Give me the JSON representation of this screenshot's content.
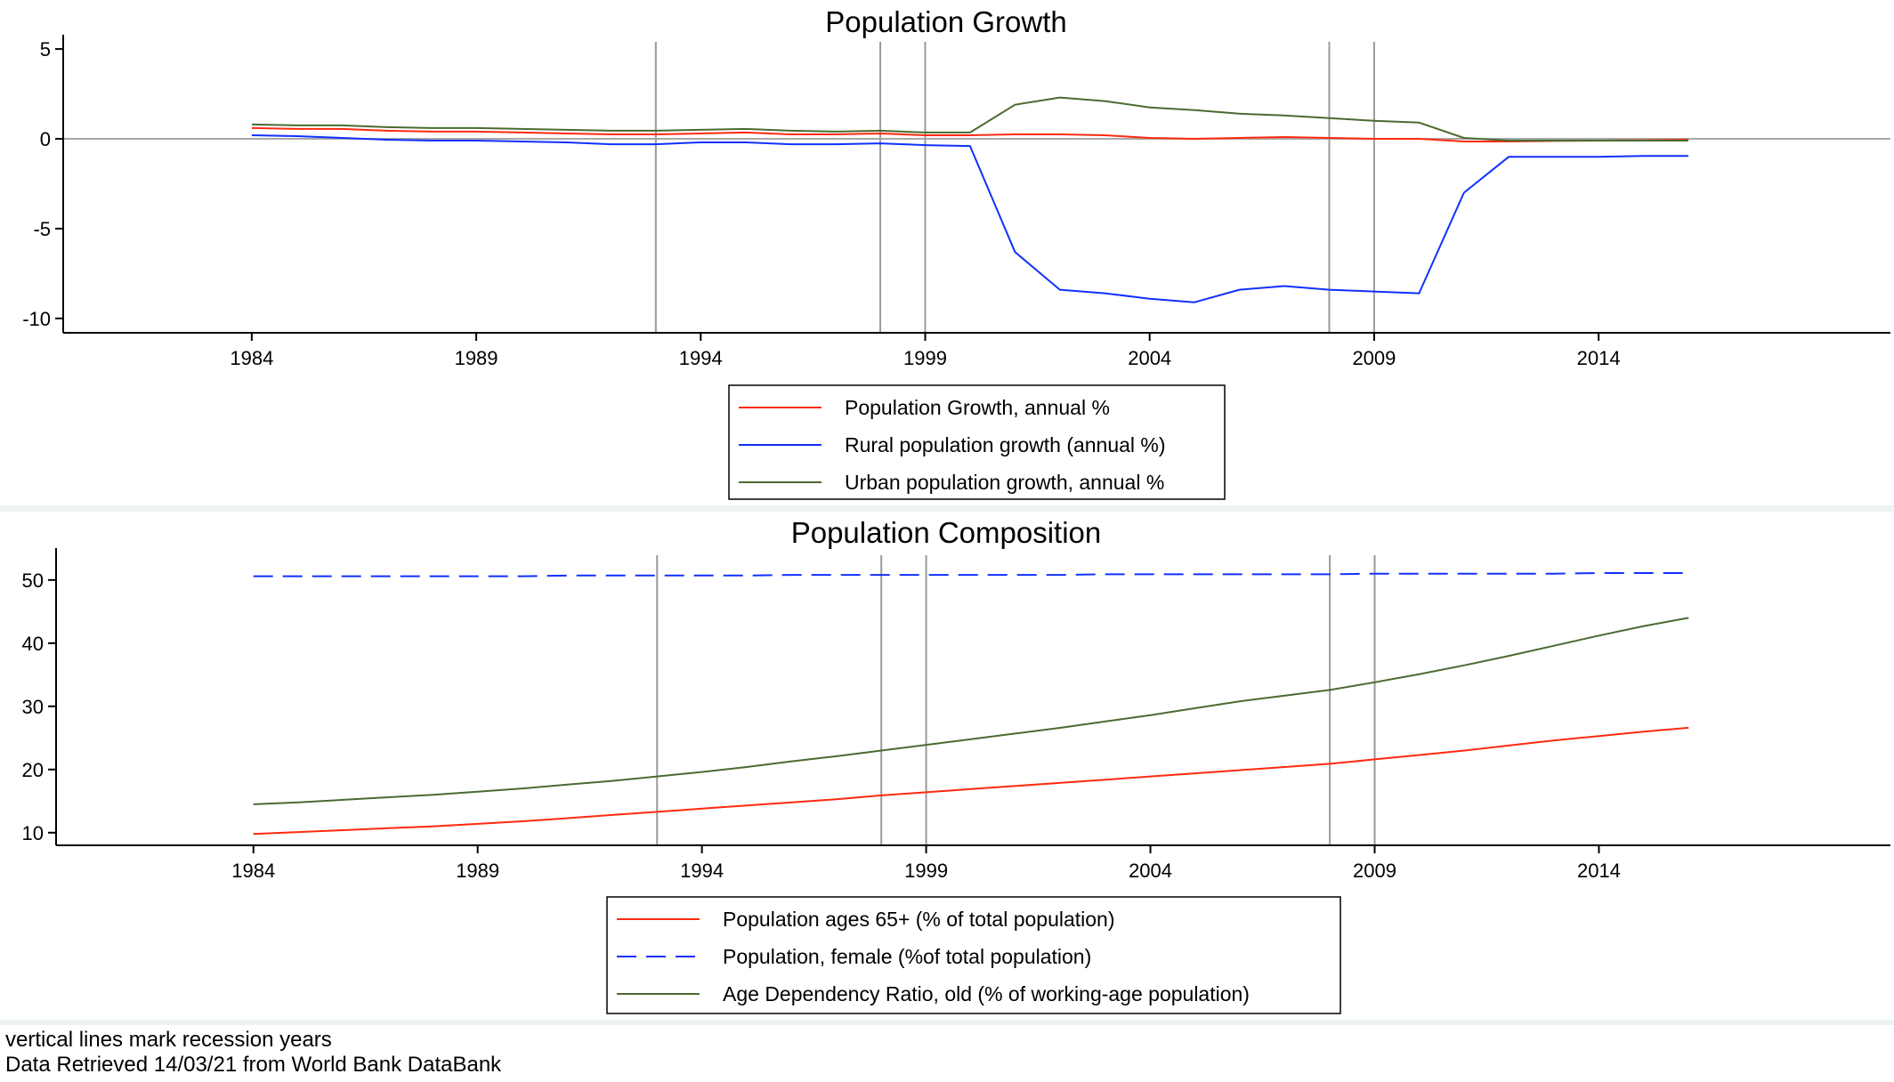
{
  "notes": [
    "vertical lines mark recession years",
    "Data Retrieved 14/03/21 from World Bank DataBank"
  ],
  "chart_data": [
    {
      "type": "line",
      "title": "Population Growth",
      "xlabel": "",
      "ylabel": "",
      "xlim": [
        1979.8,
        2020.5
      ],
      "ylim": [
        -10.8,
        5.5
      ],
      "xticks": [
        1984,
        1989,
        1994,
        1999,
        2004,
        2009,
        2014
      ],
      "yticks": [
        5,
        0,
        -5,
        -10
      ],
      "zero_line": true,
      "recession_years": [
        1993,
        1998,
        1999,
        2008,
        2009
      ],
      "legend_position": "bottom",
      "x": [
        1984,
        1985,
        1986,
        1987,
        1988,
        1989,
        1990,
        1991,
        1992,
        1993,
        1994,
        1995,
        1996,
        1997,
        1998,
        1999,
        2000,
        2001,
        2002,
        2003,
        2004,
        2005,
        2006,
        2007,
        2008,
        2009,
        2010,
        2011,
        2012,
        2013,
        2014,
        2015,
        2016
      ],
      "series": [
        {
          "name": "Population Growth, annual %",
          "color": "#ff2a10",
          "dash": "solid",
          "values": [
            0.6,
            0.55,
            0.55,
            0.45,
            0.4,
            0.4,
            0.35,
            0.3,
            0.25,
            0.25,
            0.3,
            0.35,
            0.25,
            0.25,
            0.3,
            0.2,
            0.2,
            0.25,
            0.25,
            0.2,
            0.05,
            0.0,
            0.05,
            0.1,
            0.05,
            0.0,
            0.0,
            -0.15,
            -0.15,
            -0.12,
            -0.1,
            -0.08,
            -0.05
          ]
        },
        {
          "name": "Rural population growth (annual %)",
          "color": "#1030ff",
          "dash": "solid",
          "values": [
            0.2,
            0.15,
            0.05,
            -0.05,
            -0.1,
            -0.1,
            -0.15,
            -0.2,
            -0.3,
            -0.3,
            -0.2,
            -0.2,
            -0.3,
            -0.3,
            -0.25,
            -0.35,
            -0.4,
            -6.3,
            -8.4,
            -8.6,
            -8.9,
            -9.1,
            -8.4,
            -8.2,
            -8.4,
            -8.5,
            -8.6,
            -3.0,
            -1.0,
            -1.0,
            -1.0,
            -0.95,
            -0.95
          ]
        },
        {
          "name": "Urban population growth, annual %",
          "color": "#4a6b30",
          "dash": "solid",
          "values": [
            0.8,
            0.75,
            0.75,
            0.65,
            0.6,
            0.6,
            0.55,
            0.5,
            0.45,
            0.45,
            0.5,
            0.55,
            0.45,
            0.4,
            0.45,
            0.35,
            0.35,
            1.9,
            2.3,
            2.1,
            1.75,
            1.6,
            1.4,
            1.3,
            1.15,
            1.0,
            0.9,
            0.05,
            -0.1,
            -0.1,
            -0.1,
            -0.1,
            -0.1
          ]
        }
      ]
    },
    {
      "type": "line",
      "title": "Population Composition",
      "xlabel": "",
      "ylabel": "",
      "xlim": [
        1979.6,
        2020.5
      ],
      "ylim": [
        8,
        54.2
      ],
      "xticks": [
        1984,
        1989,
        1994,
        1999,
        2004,
        2009,
        2014
      ],
      "yticks": [
        50,
        40,
        30,
        20,
        10
      ],
      "recession_years": [
        1993,
        1998,
        1999,
        2008,
        2009
      ],
      "legend_position": "bottom",
      "x": [
        1984,
        1985,
        1986,
        1987,
        1988,
        1989,
        1990,
        1991,
        1992,
        1993,
        1994,
        1995,
        1996,
        1997,
        1998,
        1999,
        2000,
        2001,
        2002,
        2003,
        2004,
        2005,
        2006,
        2007,
        2008,
        2009,
        2010,
        2011,
        2012,
        2013,
        2014,
        2015,
        2016
      ],
      "series": [
        {
          "name": "Population ages 65+ (% of total population)",
          "color": "#ff2a10",
          "dash": "solid",
          "values": [
            9.8,
            10.1,
            10.4,
            10.7,
            11.0,
            11.4,
            11.8,
            12.3,
            12.8,
            13.3,
            13.8,
            14.3,
            14.8,
            15.3,
            15.9,
            16.4,
            16.9,
            17.4,
            17.9,
            18.4,
            18.9,
            19.4,
            19.9,
            20.4,
            20.9,
            21.6,
            22.3,
            23.0,
            23.8,
            24.6,
            25.3,
            26.0,
            26.6
          ]
        },
        {
          "name": "Population, female (%of total population)",
          "color": "#1030ff",
          "dash": "dashed",
          "values": [
            50.6,
            50.6,
            50.6,
            50.6,
            50.6,
            50.6,
            50.6,
            50.7,
            50.7,
            50.7,
            50.7,
            50.7,
            50.8,
            50.8,
            50.8,
            50.8,
            50.8,
            50.8,
            50.8,
            50.9,
            50.9,
            50.9,
            50.9,
            50.9,
            50.9,
            51.0,
            51.0,
            51.0,
            51.0,
            51.0,
            51.1,
            51.1,
            51.1
          ]
        },
        {
          "name": "Age Dependency Ratio, old (% of working-age population)",
          "color": "#4a6b30",
          "dash": "solid",
          "values": [
            14.5,
            14.8,
            15.2,
            15.6,
            16.0,
            16.5,
            17.0,
            17.6,
            18.2,
            18.9,
            19.6,
            20.4,
            21.3,
            22.1,
            23.0,
            23.9,
            24.8,
            25.7,
            26.6,
            27.6,
            28.6,
            29.7,
            30.8,
            31.7,
            32.6,
            33.8,
            35.1,
            36.5,
            38.0,
            39.6,
            41.2,
            42.7,
            44.0
          ]
        }
      ]
    }
  ]
}
